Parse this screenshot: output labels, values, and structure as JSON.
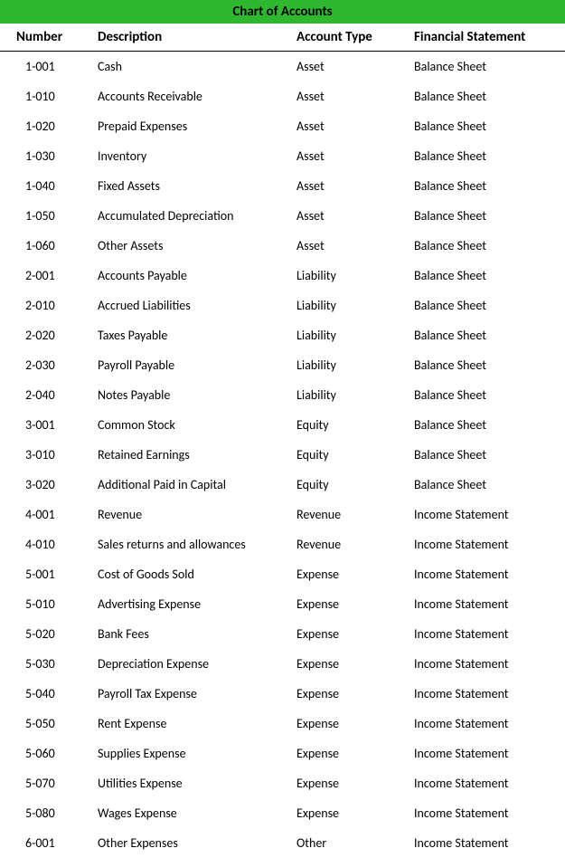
{
  "title": "Chart of Accounts",
  "title_bg_color": "#2fb82f",
  "columns": [
    "Number",
    "Description",
    "Account Type",
    "Financial Statement"
  ],
  "rows": [
    [
      "1-001",
      "Cash",
      "Asset",
      "Balance Sheet"
    ],
    [
      "1-010",
      "Accounts Receivable",
      "Asset",
      "Balance Sheet"
    ],
    [
      "1-020",
      "Prepaid Expenses",
      "Asset",
      "Balance Sheet"
    ],
    [
      "1-030",
      "Inventory",
      "Asset",
      "Balance Sheet"
    ],
    [
      "1-040",
      "Fixed Assets",
      "Asset",
      "Balance Sheet"
    ],
    [
      "1-050",
      "Accumulated Depreciation",
      "Asset",
      "Balance Sheet"
    ],
    [
      "1-060",
      "Other Assets",
      "Asset",
      "Balance Sheet"
    ],
    [
      "2-001",
      "Accounts Payable",
      "Liability",
      "Balance Sheet"
    ],
    [
      "2-010",
      "Accrued Liabilities",
      "Liability",
      "Balance Sheet"
    ],
    [
      "2-020",
      "Taxes Payable",
      "Liability",
      "Balance Sheet"
    ],
    [
      "2-030",
      "Payroll Payable",
      "Liability",
      "Balance Sheet"
    ],
    [
      "2-040",
      "Notes Payable",
      "Liability",
      "Balance Sheet"
    ],
    [
      "3-001",
      "Common Stock",
      "Equity",
      "Balance Sheet"
    ],
    [
      "3-010",
      "Retained Earnings",
      "Equity",
      "Balance Sheet"
    ],
    [
      "3-020",
      "Additional Paid in Capital",
      "Equity",
      "Balance Sheet"
    ],
    [
      "4-001",
      "Revenue",
      "Revenue",
      "Income Statement"
    ],
    [
      "4-010",
      "Sales returns and allowances",
      "Revenue",
      "Income Statement"
    ],
    [
      "5-001",
      "Cost of Goods Sold",
      "Expense",
      "Income Statement"
    ],
    [
      "5-010",
      "Advertising Expense",
      "Expense",
      "Income Statement"
    ],
    [
      "5-020",
      "Bank Fees",
      "Expense",
      "Income Statement"
    ],
    [
      "5-030",
      "Depreciation Expense",
      "Expense",
      "Income Statement"
    ],
    [
      "5-040",
      "Payroll Tax Expense",
      "Expense",
      "Income Statement"
    ],
    [
      "5-050",
      "Rent Expense",
      "Expense",
      "Income Statement"
    ],
    [
      "5-060",
      "Supplies Expense",
      "Expense",
      "Income Statement"
    ],
    [
      "5-070",
      "Utilities Expense",
      "Expense",
      "Income Statement"
    ],
    [
      "5-080",
      "Wages Expense",
      "Expense",
      "Income Statement"
    ],
    [
      "6-001",
      "Other Expenses",
      "Other",
      "Income Statement"
    ]
  ]
}
